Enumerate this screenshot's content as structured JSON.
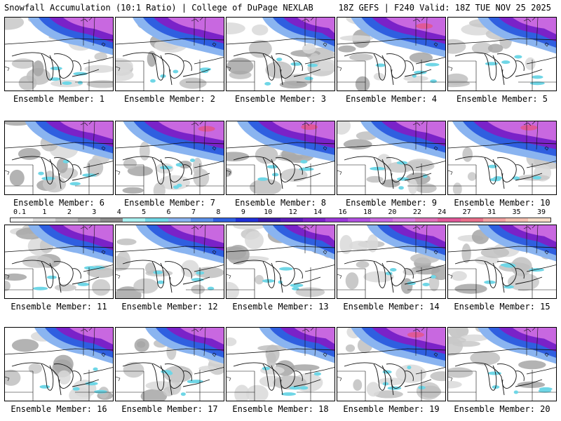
{
  "header": {
    "title": "Snowfall Accumulation (10:1 Ratio) | College of DuPage NEXLAB",
    "run_info": "18Z GEFS | F240 Valid: 18Z TUE NOV 25 2025"
  },
  "panels": [
    {
      "caption": "Ensemble Member: 1"
    },
    {
      "caption": "Ensemble Member: 2"
    },
    {
      "caption": "Ensemble Member: 3"
    },
    {
      "caption": "Ensemble Member: 4"
    },
    {
      "caption": "Ensemble Member: 5"
    },
    {
      "caption": "Ensemble Member: 6"
    },
    {
      "caption": "Ensemble Member: 7"
    },
    {
      "caption": "Ensemble Member: 8"
    },
    {
      "caption": "Ensemble Member: 9"
    },
    {
      "caption": "Ensemble Member: 10"
    },
    {
      "caption": "Ensemble Member: 11"
    },
    {
      "caption": "Ensemble Member: 12"
    },
    {
      "caption": "Ensemble Member: 13"
    },
    {
      "caption": "Ensemble Member: 14"
    },
    {
      "caption": "Ensemble Member: 15"
    },
    {
      "caption": "Ensemble Member: 16"
    },
    {
      "caption": "Ensemble Member: 17"
    },
    {
      "caption": "Ensemble Member: 18"
    },
    {
      "caption": "Ensemble Member: 19"
    },
    {
      "caption": "Ensemble Member: 20"
    }
  ],
  "colorbar": {
    "labels": [
      "0.1",
      "1",
      "2",
      "3",
      "4",
      "5",
      "6",
      "7",
      "8",
      "9",
      "10",
      "12",
      "14",
      "16",
      "18",
      "20",
      "22",
      "24",
      "27",
      "31",
      "35",
      "39"
    ],
    "colors": [
      "#f2f2f2",
      "#d9d9d9",
      "#bfbfbf",
      "#a6a6a6",
      "#8c8c8c",
      "#a8f0f0",
      "#6fd6e6",
      "#8ab4f0",
      "#5b8fe8",
      "#2f5fe0",
      "#1f2fd6",
      "#3a1aa8",
      "#5a1ab8",
      "#7a22c8",
      "#9a38d8",
      "#b050e0",
      "#c868e0",
      "#d880e0",
      "#e070b8",
      "#e05898",
      "#e8708a",
      "#f0a0a0",
      "#f4c0b0",
      "#f8dcc8"
    ]
  }
}
